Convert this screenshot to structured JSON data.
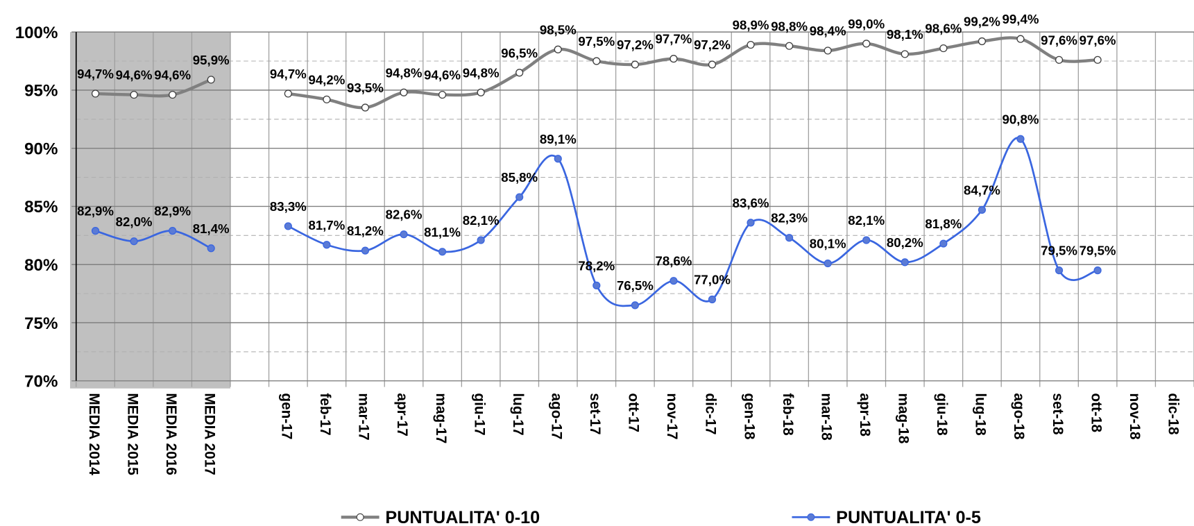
{
  "chart_data": {
    "type": "line",
    "categories": [
      "MEDIA 2014",
      "MEDIA 2015",
      "MEDIA 2016",
      "MEDIA 2017",
      null,
      "gen-17",
      "feb-17",
      "mar-17",
      "apr-17",
      "mag-17",
      "giu-17",
      "lug-17",
      "ago-17",
      "set-17",
      "ott-17",
      "nov-17",
      "dic-17",
      "gen-18",
      "feb-18",
      "mar-18",
      "apr-18",
      "mag-18",
      "giu-18",
      "lug-18",
      "ago-18",
      "set-18",
      "ott-18",
      "nov-18",
      "dic-18"
    ],
    "series": [
      {
        "name": "PUNTUALITA' 0-10",
        "color": "#808080",
        "marker_fill": "#ffffff",
        "values": [
          94.7,
          94.6,
          94.6,
          95.9,
          null,
          94.7,
          94.2,
          93.5,
          94.8,
          94.6,
          94.8,
          96.5,
          98.5,
          97.5,
          97.2,
          97.7,
          97.2,
          98.9,
          98.8,
          98.4,
          99.0,
          98.1,
          98.6,
          99.2,
          99.4,
          97.6,
          97.6,
          null,
          null
        ],
        "value_labels": [
          "94,7%",
          "94,6%",
          "94,6%",
          "95,9%",
          null,
          "94,7%",
          "94,2%",
          "93,5%",
          "94,8%",
          "94,6%",
          "94,8%",
          "96,5%",
          "98,5%",
          "97,5%",
          "97,2%",
          "97,7%",
          "97,2%",
          "98,9%",
          "98,8%",
          "98,4%",
          "99,0%",
          "98,1%",
          "98,6%",
          "99,2%",
          "99,4%",
          "97,6%",
          "97,6%",
          null,
          null
        ]
      },
      {
        "name": "PUNTUALITA' 0-5",
        "color": "#3a66e0",
        "marker_fill": "#5b7bd5",
        "values": [
          82.9,
          82.0,
          82.9,
          81.4,
          null,
          83.3,
          81.7,
          81.2,
          82.6,
          81.1,
          82.1,
          85.8,
          89.1,
          78.2,
          76.5,
          78.6,
          77.0,
          83.6,
          82.3,
          80.1,
          82.1,
          80.2,
          81.8,
          84.7,
          90.8,
          79.5,
          79.5,
          null,
          null
        ],
        "value_labels": [
          "82,9%",
          "82,0%",
          "82,9%",
          "81,4%",
          null,
          "83,3%",
          "81,7%",
          "81,2%",
          "82,6%",
          "81,1%",
          "82,1%",
          "85,8%",
          "89,1%",
          "78,2%",
          "76,5%",
          "78,6%",
          "77,0%",
          "83,6%",
          "82,3%",
          "80,1%",
          "82,1%",
          "80,2%",
          "81,8%",
          "84,7%",
          "90,8%",
          "79,5%",
          "79,5%",
          null,
          null
        ]
      }
    ],
    "ylim": [
      70,
      100
    ],
    "yticks": [
      {
        "value": 70,
        "label": "70%"
      },
      {
        "value": 75,
        "label": "75%"
      },
      {
        "value": 80,
        "label": "80%"
      },
      {
        "value": 85,
        "label": "85%"
      },
      {
        "value": 90,
        "label": "90%"
      },
      {
        "value": 95,
        "label": "95%"
      },
      {
        "value": 100,
        "label": "100%"
      }
    ],
    "minor_yticks": [
      72.5,
      77.5,
      82.5,
      87.5,
      92.5,
      97.5
    ],
    "grid": true,
    "legend": "bottom",
    "shaded_categories": 4
  }
}
